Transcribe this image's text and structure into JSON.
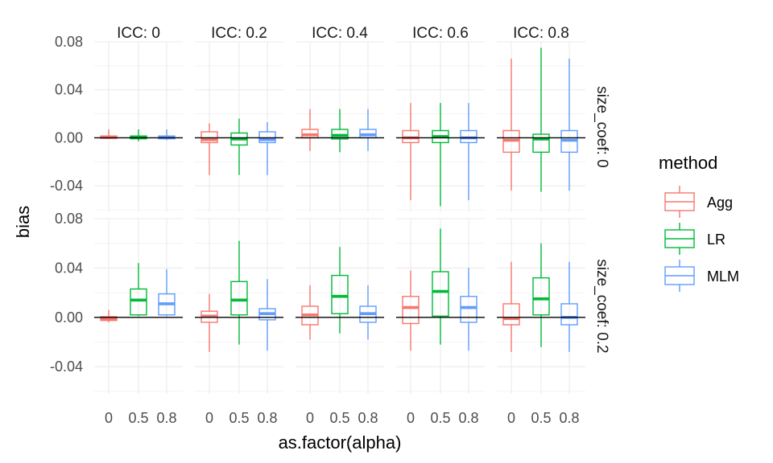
{
  "chart_data": {
    "type": "boxplot",
    "xlabel": "as.factor(alpha)",
    "ylabel": "bias",
    "x_categories": [
      "0",
      "0.5",
      "0.8"
    ],
    "ylim": [
      -0.062,
      0.08
    ],
    "y_ticks": [
      -0.04,
      0.0,
      0.04,
      0.08
    ],
    "y_tick_labels": [
      "-0.04",
      "0.00",
      "0.04",
      "0.08"
    ],
    "column_facets": [
      "ICC: 0",
      "ICC: 0.2",
      "ICC: 0.4",
      "ICC: 0.6",
      "ICC: 0.8"
    ],
    "row_facets": [
      "size_coef: 0",
      "size_coef: 0.2"
    ],
    "reference_line_y": 0,
    "legend": {
      "title": "method",
      "position": "right",
      "entries": [
        {
          "name": "Agg",
          "color": "#F8766D"
        },
        {
          "name": "LR",
          "color": "#00BA38"
        },
        {
          "name": "MLM",
          "color": "#619CFF"
        }
      ]
    },
    "panels": [
      {
        "row": 0,
        "col": 0,
        "boxes": [
          {
            "alpha": "0",
            "method": "Agg",
            "min": -0.001,
            "q1": -0.0005,
            "median": 0.0005,
            "q3": 0.0015,
            "max": 0.007
          },
          {
            "alpha": "0.5",
            "method": "LR",
            "min": -0.003,
            "q1": -0.0008,
            "median": 0.0003,
            "q3": 0.0015,
            "max": 0.007
          },
          {
            "alpha": "0.8",
            "method": "MLM",
            "min": -0.002,
            "q1": -0.0008,
            "median": 0.0003,
            "q3": 0.0015,
            "max": 0.007
          }
        ]
      },
      {
        "row": 0,
        "col": 1,
        "boxes": [
          {
            "alpha": "0",
            "method": "Agg",
            "min": -0.031,
            "q1": -0.004,
            "median": -0.0015,
            "q3": 0.005,
            "max": 0.012
          },
          {
            "alpha": "0.5",
            "method": "LR",
            "min": -0.031,
            "q1": -0.006,
            "median": -0.001,
            "q3": 0.004,
            "max": 0.016
          },
          {
            "alpha": "0.8",
            "method": "MLM",
            "min": -0.031,
            "q1": -0.004,
            "median": -0.0015,
            "q3": 0.005,
            "max": 0.013
          }
        ]
      },
      {
        "row": 0,
        "col": 2,
        "boxes": [
          {
            "alpha": "0",
            "method": "Agg",
            "min": -0.011,
            "q1": 0.0,
            "median": 0.0025,
            "q3": 0.007,
            "max": 0.024
          },
          {
            "alpha": "0.5",
            "method": "LR",
            "min": -0.012,
            "q1": -0.001,
            "median": 0.002,
            "q3": 0.007,
            "max": 0.024
          },
          {
            "alpha": "0.8",
            "method": "MLM",
            "min": -0.011,
            "q1": 0.0,
            "median": 0.0025,
            "q3": 0.007,
            "max": 0.024
          }
        ]
      },
      {
        "row": 0,
        "col": 3,
        "boxes": [
          {
            "alpha": "0",
            "method": "Agg",
            "min": -0.052,
            "q1": -0.004,
            "median": 0.0,
            "q3": 0.006,
            "max": 0.029
          },
          {
            "alpha": "0.5",
            "method": "LR",
            "min": -0.057,
            "q1": -0.004,
            "median": 0.001,
            "q3": 0.006,
            "max": 0.029
          },
          {
            "alpha": "0.8",
            "method": "MLM",
            "min": -0.052,
            "q1": -0.004,
            "median": 0.0,
            "q3": 0.006,
            "max": 0.029
          }
        ]
      },
      {
        "row": 0,
        "col": 4,
        "boxes": [
          {
            "alpha": "0",
            "method": "Agg",
            "min": -0.044,
            "q1": -0.012,
            "median": -0.002,
            "q3": 0.006,
            "max": 0.066
          },
          {
            "alpha": "0.5",
            "method": "LR",
            "min": -0.045,
            "q1": -0.012,
            "median": -0.001,
            "q3": 0.003,
            "max": 0.075
          },
          {
            "alpha": "0.8",
            "method": "MLM",
            "min": -0.044,
            "q1": -0.012,
            "median": -0.002,
            "q3": 0.006,
            "max": 0.066
          }
        ]
      },
      {
        "row": 1,
        "col": 0,
        "boxes": [
          {
            "alpha": "0",
            "method": "Agg",
            "min": -0.004,
            "q1": -0.0025,
            "median": -0.001,
            "q3": 0.0005,
            "max": 0.006
          },
          {
            "alpha": "0.5",
            "method": "LR",
            "min": 0.001,
            "q1": 0.002,
            "median": 0.014,
            "q3": 0.023,
            "max": 0.044
          },
          {
            "alpha": "0.8",
            "method": "MLM",
            "min": 0.001,
            "q1": 0.002,
            "median": 0.011,
            "q3": 0.019,
            "max": 0.039
          }
        ]
      },
      {
        "row": 1,
        "col": 1,
        "boxes": [
          {
            "alpha": "0",
            "method": "Agg",
            "min": -0.028,
            "q1": -0.004,
            "median": 0.001,
            "q3": 0.005,
            "max": 0.019
          },
          {
            "alpha": "0.5",
            "method": "LR",
            "min": -0.022,
            "q1": 0.002,
            "median": 0.014,
            "q3": 0.029,
            "max": 0.062
          },
          {
            "alpha": "0.8",
            "method": "MLM",
            "min": -0.027,
            "q1": -0.002,
            "median": 0.003,
            "q3": 0.007,
            "max": 0.031
          }
        ]
      },
      {
        "row": 1,
        "col": 2,
        "boxes": [
          {
            "alpha": "0",
            "method": "Agg",
            "min": -0.018,
            "q1": -0.006,
            "median": 0.002,
            "q3": 0.009,
            "max": 0.026
          },
          {
            "alpha": "0.5",
            "method": "LR",
            "min": -0.013,
            "q1": 0.003,
            "median": 0.017,
            "q3": 0.034,
            "max": 0.057
          },
          {
            "alpha": "0.8",
            "method": "MLM",
            "min": -0.018,
            "q1": -0.004,
            "median": 0.003,
            "q3": 0.009,
            "max": 0.026
          }
        ]
      },
      {
        "row": 1,
        "col": 3,
        "boxes": [
          {
            "alpha": "0",
            "method": "Agg",
            "min": -0.027,
            "q1": -0.005,
            "median": 0.008,
            "q3": 0.017,
            "max": 0.038
          },
          {
            "alpha": "0.5",
            "method": "LR",
            "min": -0.022,
            "q1": 0.001,
            "median": 0.021,
            "q3": 0.037,
            "max": 0.072
          },
          {
            "alpha": "0.8",
            "method": "MLM",
            "min": -0.027,
            "q1": -0.004,
            "median": 0.008,
            "q3": 0.017,
            "max": 0.04
          }
        ]
      },
      {
        "row": 1,
        "col": 4,
        "boxes": [
          {
            "alpha": "0",
            "method": "Agg",
            "min": -0.028,
            "q1": -0.006,
            "median": -0.001,
            "q3": 0.011,
            "max": 0.045
          },
          {
            "alpha": "0.5",
            "method": "LR",
            "min": -0.024,
            "q1": 0.002,
            "median": 0.015,
            "q3": 0.032,
            "max": 0.06
          },
          {
            "alpha": "0.8",
            "method": "MLM",
            "min": -0.028,
            "q1": -0.006,
            "median": 0.0,
            "q3": 0.011,
            "max": 0.045
          }
        ]
      }
    ]
  }
}
